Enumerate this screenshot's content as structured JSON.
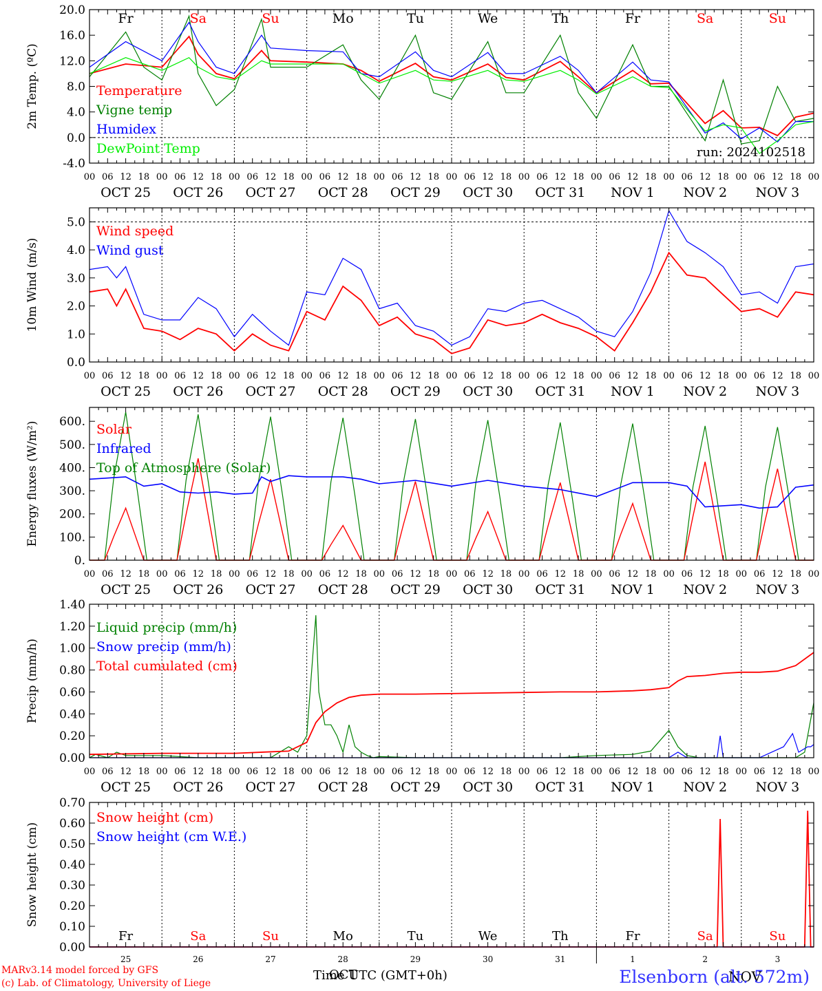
{
  "colors": {
    "red": "#ff0000",
    "green": "#008000",
    "blue": "#0000ff",
    "lightgreen": "#00ee00",
    "weekend": "#ff0000",
    "axis": "#000000"
  },
  "days": {
    "names": [
      "Fr",
      "Sa",
      "Su",
      "Mo",
      "Tu",
      "We",
      "Th",
      "Fr",
      "Sa",
      "Su"
    ],
    "weekend": [
      false,
      true,
      true,
      false,
      false,
      false,
      false,
      false,
      true,
      true
    ],
    "dates": [
      "OCT 25",
      "OCT 26",
      "OCT 27",
      "OCT 28",
      "OCT 29",
      "OCT 30",
      "OCT 31",
      "NOV  1",
      "NOV  2",
      "NOV  3"
    ],
    "nums": [
      "25",
      "26",
      "27",
      "28",
      "29",
      "30",
      "31",
      "1",
      "2",
      "3"
    ],
    "hours": [
      "00",
      "06",
      "12",
      "18"
    ],
    "last_hour": "00"
  },
  "footer": {
    "model": "MARv3.14 model forced by GFS",
    "lab": "(c) Lab. of Climatology, University of Liege",
    "xlabel": "Time UTC (GMT+0h)",
    "month": "OCT",
    "month2": "NOV",
    "station": "Elsenborn (alt. 572m)"
  },
  "chart_data": [
    {
      "type": "line",
      "id": "temp",
      "ylabel": "2m Temp. (ºC)",
      "ylim": [
        -4,
        20
      ],
      "yticks": [
        "-4.0",
        "0.0",
        "4.0",
        "8.0",
        "12.0",
        "16.0",
        "20.0"
      ],
      "ytick_values": [
        -4,
        0,
        4,
        8,
        12,
        16,
        20
      ],
      "dashed_hline": 0,
      "run": "run: 2024102518",
      "x_unit": "hours since OCT 25 00 UTC",
      "series": [
        {
          "name": "Temperature",
          "color": "red",
          "x": [
            0,
            12,
            24,
            33,
            36,
            42,
            48,
            57,
            60,
            72,
            84,
            90,
            96,
            108,
            114,
            120,
            132,
            138,
            144,
            156,
            162,
            168,
            180,
            186,
            192,
            204,
            210,
            216,
            222,
            228,
            234,
            240
          ],
          "y": [
            10,
            11.5,
            11,
            15.8,
            13,
            10,
            9.2,
            13.6,
            12,
            11.8,
            11.5,
            10.5,
            8.8,
            11.6,
            9.5,
            9,
            11.5,
            9.4,
            9,
            11.9,
            9.5,
            7,
            10.5,
            8.4,
            8.5,
            2.2,
            4.2,
            1.5,
            1.6,
            0.3,
            3.2,
            3.8
          ]
        },
        {
          "name": "Vigne temp",
          "color": "green",
          "x": [
            0,
            12,
            18,
            24,
            33,
            36,
            42,
            48,
            57,
            60,
            72,
            84,
            90,
            96,
            108,
            114,
            120,
            132,
            138,
            144,
            156,
            162,
            168,
            180,
            186,
            192,
            204,
            210,
            216,
            222,
            228,
            234,
            240
          ],
          "y": [
            9.5,
            16.5,
            11,
            9,
            19,
            10,
            5,
            7.5,
            18.5,
            11,
            11,
            14.5,
            9,
            6,
            16,
            7,
            6,
            15,
            7,
            7,
            16,
            7,
            3,
            14.5,
            8,
            8,
            -0.5,
            9,
            -1,
            -0.5,
            8,
            2.5,
            3
          ]
        },
        {
          "name": "Humidex",
          "color": "blue",
          "x": [
            0,
            12,
            24,
            33,
            36,
            42,
            48,
            57,
            60,
            72,
            84,
            90,
            96,
            108,
            114,
            120,
            132,
            138,
            144,
            156,
            162,
            168,
            180,
            186,
            192,
            204,
            210,
            216,
            222,
            228,
            234,
            240
          ],
          "y": [
            11,
            15,
            12,
            18,
            15,
            11,
            10,
            16,
            14,
            13.6,
            13.4,
            10,
            9.5,
            13.4,
            10.5,
            9.5,
            13.3,
            10,
            10,
            12.7,
            10.5,
            7,
            11.8,
            9,
            8.7,
            0.7,
            2.3,
            -0.2,
            1.5,
            -0.7,
            2.5,
            2.5
          ]
        },
        {
          "name": "DewPoint Temp",
          "color": "lightgreen",
          "x": [
            0,
            12,
            24,
            33,
            36,
            42,
            48,
            57,
            60,
            72,
            84,
            90,
            96,
            108,
            114,
            120,
            132,
            138,
            144,
            156,
            162,
            168,
            180,
            186,
            192,
            204,
            210,
            216,
            222,
            228,
            234,
            240
          ],
          "y": [
            10,
            12.5,
            10.5,
            12.5,
            11,
            9.5,
            9,
            12,
            11.5,
            11.5,
            11.5,
            10,
            8.5,
            10.5,
            9,
            8.8,
            10.5,
            9,
            8.8,
            10.5,
            9,
            6.8,
            9.5,
            8,
            7.8,
            1,
            2,
            1.5,
            -2.5,
            -0.5,
            2,
            2.5
          ]
        }
      ]
    },
    {
      "type": "line",
      "id": "wind",
      "ylabel": "10m Wind (m/s)",
      "ylim": [
        0,
        5.5
      ],
      "yticks": [
        "0.0",
        "1.0",
        "2.0",
        "3.0",
        "4.0",
        "5.0"
      ],
      "ytick_values": [
        0,
        1,
        2,
        3,
        4,
        5
      ],
      "dashed_hline": 5,
      "x_unit": "hours since OCT 25 00 UTC",
      "series": [
        {
          "name": "Wind speed",
          "color": "red",
          "x": [
            0,
            6,
            9,
            12,
            18,
            24,
            30,
            36,
            42,
            48,
            54,
            60,
            66,
            72,
            78,
            84,
            90,
            96,
            102,
            108,
            114,
            120,
            126,
            132,
            138,
            144,
            150,
            156,
            162,
            168,
            174,
            180,
            186,
            192,
            198,
            204,
            210,
            216,
            222,
            228,
            234,
            240
          ],
          "y": [
            2.5,
            2.6,
            2,
            2.6,
            1.2,
            1.1,
            0.8,
            1.2,
            1,
            0.4,
            1,
            0.6,
            0.4,
            1.8,
            1.5,
            2.7,
            2.2,
            1.3,
            1.6,
            1,
            0.8,
            0.3,
            0.5,
            1.5,
            1.3,
            1.4,
            1.7,
            1.4,
            1.2,
            0.9,
            0.4,
            1.4,
            2.5,
            3.9,
            3.1,
            3,
            2.4,
            1.8,
            1.9,
            1.6,
            2.5,
            2.4
          ]
        },
        {
          "name": "Wind gust",
          "color": "blue",
          "x": [
            0,
            6,
            9,
            12,
            18,
            24,
            30,
            36,
            42,
            48,
            54,
            60,
            66,
            72,
            78,
            84,
            90,
            96,
            102,
            108,
            114,
            120,
            126,
            132,
            138,
            144,
            150,
            156,
            162,
            168,
            174,
            180,
            186,
            192,
            198,
            204,
            210,
            216,
            222,
            228,
            234,
            240
          ],
          "y": [
            3.3,
            3.4,
            3,
            3.4,
            1.7,
            1.5,
            1.5,
            2.3,
            1.9,
            0.9,
            1.7,
            1.1,
            0.6,
            2.5,
            2.4,
            3.7,
            3.3,
            1.9,
            2.1,
            1.3,
            1.1,
            0.6,
            0.9,
            1.9,
            1.8,
            2.1,
            2.2,
            1.9,
            1.6,
            1.1,
            0.9,
            1.8,
            3.2,
            5.4,
            4.3,
            3.9,
            3.4,
            2.4,
            2.5,
            2.1,
            3.4,
            3.5
          ]
        }
      ]
    },
    {
      "type": "line",
      "id": "energy",
      "ylabel": "Energy fluxes (W/m²)",
      "ylim": [
        0,
        660
      ],
      "yticks": [
        "0.",
        "100.",
        "200.",
        "300.",
        "400.",
        "500.",
        "600."
      ],
      "ytick_values": [
        0,
        100,
        200,
        300,
        400,
        500,
        600
      ],
      "x_unit": "hours since OCT 25 00 UTC",
      "peaks": {
        "hours": [
          12,
          36,
          60,
          84,
          108,
          132,
          156,
          180,
          204,
          228
        ],
        "solar": [
          225,
          440,
          350,
          150,
          340,
          210,
          335,
          245,
          425,
          395
        ],
        "toa": [
          640,
          630,
          620,
          615,
          610,
          605,
          595,
          590,
          580,
          575
        ]
      },
      "series": [
        {
          "name": "Solar",
          "color": "red"
        },
        {
          "name": "Infrared",
          "color": "blue",
          "x": [
            0,
            12,
            18,
            24,
            30,
            36,
            42,
            48,
            54,
            57,
            60,
            66,
            72,
            84,
            90,
            96,
            108,
            120,
            132,
            144,
            156,
            168,
            180,
            192,
            198,
            204,
            216,
            222,
            228,
            234,
            240
          ],
          "y": [
            350,
            360,
            320,
            330,
            295,
            290,
            295,
            285,
            290,
            360,
            340,
            365,
            360,
            360,
            350,
            330,
            345,
            320,
            345,
            320,
            305,
            275,
            335,
            335,
            320,
            230,
            240,
            225,
            230,
            315,
            325
          ]
        },
        {
          "name": "Top of Atmosphere (Solar)",
          "color": "green"
        }
      ]
    },
    {
      "type": "line",
      "id": "precip",
      "ylabel": "Precip (mm/h)",
      "ylim": [
        0,
        1.4
      ],
      "yticks": [
        "0.00",
        "0.20",
        "0.40",
        "0.60",
        "0.80",
        "1.00",
        "1.20",
        "1.40"
      ],
      "ytick_values": [
        0,
        0.2,
        0.4,
        0.6,
        0.8,
        1.0,
        1.2,
        1.4
      ],
      "x_unit": "hours since OCT 25 00 UTC",
      "series": [
        {
          "name": "Liquid precip (mm/h)",
          "color": "green",
          "x": [
            0,
            2,
            6,
            9,
            12,
            24,
            36,
            48,
            60,
            66,
            69,
            72,
            75,
            76,
            78,
            80,
            82,
            84,
            86,
            88,
            90,
            92,
            94,
            96,
            108,
            120,
            132,
            144,
            156,
            168,
            180,
            186,
            192,
            195,
            198,
            202,
            204,
            210,
            216,
            222,
            228,
            234,
            237,
            240
          ],
          "y": [
            0,
            0.03,
            0,
            0.05,
            0.02,
            0.02,
            0,
            0,
            0,
            0.1,
            0.05,
            0.2,
            1.3,
            0.6,
            0.3,
            0.3,
            0.2,
            0.05,
            0.3,
            0.1,
            0.05,
            0.02,
            0,
            0.01,
            0,
            0,
            0,
            0,
            0,
            0.02,
            0.03,
            0.06,
            0.25,
            0.1,
            0.02,
            0,
            0,
            0,
            0,
            0,
            0,
            0,
            0.05,
            0.5
          ]
        },
        {
          "name": "Snow precip (mm/h)",
          "color": "blue",
          "x": [
            0,
            192,
            195,
            198,
            208,
            209,
            210,
            216,
            222,
            230,
            233,
            235,
            238,
            239,
            240
          ],
          "y": [
            0,
            0,
            0.05,
            0,
            0,
            0.2,
            0,
            0,
            0,
            0.1,
            0.22,
            0.05,
            0.1,
            0.1,
            0.12
          ]
        },
        {
          "name": "Total cumulated (cm)",
          "color": "red",
          "x": [
            0,
            24,
            48,
            66,
            72,
            75,
            78,
            82,
            86,
            90,
            96,
            108,
            132,
            156,
            168,
            180,
            186,
            192,
            195,
            198,
            204,
            210,
            216,
            222,
            228,
            234,
            240
          ],
          "y": [
            0.03,
            0.04,
            0.04,
            0.06,
            0.14,
            0.32,
            0.42,
            0.5,
            0.55,
            0.57,
            0.58,
            0.58,
            0.59,
            0.6,
            0.6,
            0.61,
            0.62,
            0.64,
            0.7,
            0.74,
            0.75,
            0.77,
            0.78,
            0.78,
            0.79,
            0.84,
            0.96
          ]
        }
      ]
    },
    {
      "type": "line",
      "id": "snow",
      "ylabel": "Snow height (cm)",
      "ylim": [
        0,
        0.7
      ],
      "yticks": [
        "0.00",
        "0.10",
        "0.20",
        "0.30",
        "0.40",
        "0.50",
        "0.60",
        "0.70"
      ],
      "ytick_values": [
        0,
        0.1,
        0.2,
        0.3,
        0.4,
        0.5,
        0.6,
        0.7
      ],
      "x_unit": "hours since OCT 25 00 UTC",
      "series": [
        {
          "name": "Snow height (cm)",
          "color": "red",
          "x": [
            0,
            208,
            209,
            210,
            237,
            238,
            239,
            240
          ],
          "y": [
            0,
            0,
            0.62,
            0,
            0,
            0.66,
            0,
            0
          ]
        },
        {
          "name": "Snow height (cm W.E.)",
          "color": "blue",
          "x": [
            0,
            240
          ],
          "y": [
            0,
            0
          ]
        }
      ]
    }
  ]
}
